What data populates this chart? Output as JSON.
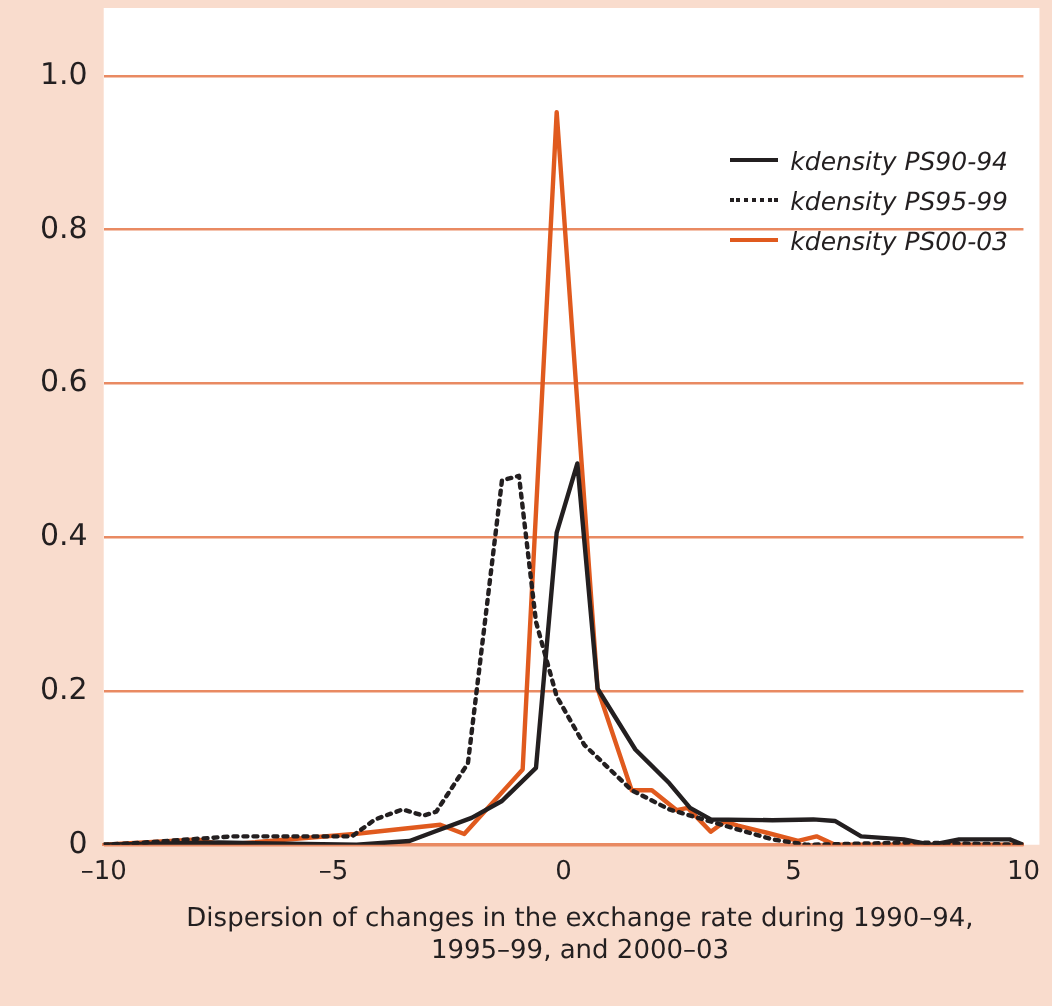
{
  "chart_data": {
    "type": "line",
    "xlabel": "Dispersion of changes in the exchange rate during 1990–94, 1995–99, and 2000–03",
    "xlim": [
      -10,
      10
    ],
    "xticks": [
      {
        "value": -10,
        "label": "–10"
      },
      {
        "value": -5,
        "label": "–5"
      },
      0,
      5,
      10
    ],
    "ylim": [
      0,
      1.0
    ],
    "yticks": [
      0,
      0.2,
      0.4,
      0.6,
      0.8,
      {
        "value": 1.0,
        "label": "1.0"
      }
    ],
    "grid": "y",
    "legend": "top right",
    "marker": "none",
    "series": [
      {
        "name": "kdensity PS90-94",
        "color": "#231f20",
        "line_style": "solid",
        "x": [
          -10,
          -7.5,
          -4.5,
          -3.35,
          -2.77,
          -2.0,
          -1.34,
          -0.6,
          -0.15,
          0.3,
          0.74,
          1.56,
          2.3,
          2.75,
          3.2,
          4.54,
          5.43,
          5.9,
          6.47,
          7.4,
          8.0,
          8.6,
          9.7,
          10
        ],
        "values": [
          0,
          0.003,
          0,
          0.005,
          0.018,
          0.035,
          0.057,
          0.1,
          0.406,
          0.496,
          0.203,
          0.124,
          0.08,
          0.048,
          0.033,
          0.032,
          0.033,
          0.031,
          0.011,
          0.007,
          0,
          0.007,
          0.007,
          0
        ]
      },
      {
        "name": "kdensity PS95-99",
        "color": "#231f20",
        "line_style": "dotted",
        "x": [
          -10,
          -9.1,
          -7.2,
          -4.6,
          -4.1,
          -3.5,
          -3.05,
          -2.77,
          -2.08,
          -1.34,
          -0.97,
          -0.6,
          -0.15,
          0.45,
          1.48,
          2.3,
          3.5,
          4.54,
          5.3,
          7.6,
          10
        ],
        "values": [
          0,
          0.003,
          0.011,
          0.011,
          0.033,
          0.046,
          0.038,
          0.043,
          0.106,
          0.474,
          0.48,
          0.29,
          0.193,
          0.13,
          0.071,
          0.046,
          0.025,
          0.007,
          0,
          0.003,
          0
        ]
      },
      {
        "name": "kdensity PS00-03",
        "color": "#e05a1e",
        "line_style": "solid",
        "x": [
          -10,
          -7.96,
          -7.4,
          -4.55,
          -2.68,
          -2.16,
          -0.89,
          -0.15,
          0.74,
          1.48,
          1.92,
          2.46,
          2.7,
          3.2,
          3.5,
          3.79,
          4.4,
          5.1,
          5.5,
          5.9,
          10
        ],
        "values": [
          0,
          0.007,
          0,
          0.014,
          0.026,
          0.014,
          0.098,
          0.953,
          0.203,
          0.071,
          0.071,
          0.045,
          0.048,
          0.017,
          0.03,
          0.025,
          0.016,
          0.005,
          0.011,
          0,
          0
        ]
      }
    ]
  }
}
